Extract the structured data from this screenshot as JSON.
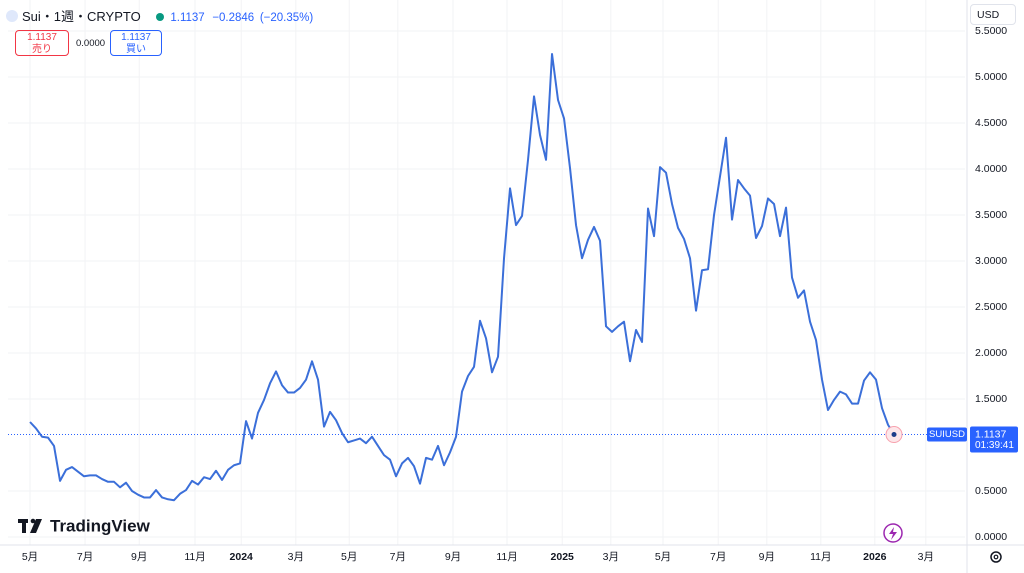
{
  "header": {
    "symbol": "Sui・1週・CRYPTO",
    "last": "1.1137",
    "change": "−0.2846",
    "change_pct": "(−20.35%)",
    "sell_price": "1.1137",
    "sell_label": "売り",
    "spread": "0.0000",
    "buy_price": "1.1137",
    "buy_label": "買い",
    "currency": "USD",
    "brand": "TradingView"
  },
  "chart_data": {
    "type": "line",
    "color": "#3b6fd9",
    "grid": true,
    "x": [
      0,
      1,
      2,
      3,
      4,
      5,
      6,
      7,
      8,
      9,
      10,
      11,
      12,
      13,
      14,
      15,
      16,
      17,
      18,
      19,
      20,
      21,
      22,
      23,
      24,
      25,
      26,
      27,
      28,
      29,
      30,
      31,
      32,
      33,
      34,
      35,
      36,
      37,
      38,
      39,
      40,
      41,
      42,
      43,
      44,
      45,
      46,
      47,
      48,
      49,
      50,
      51,
      52,
      53,
      54,
      55,
      56,
      57,
      58,
      59,
      60,
      61,
      62,
      63,
      64,
      65,
      66,
      67,
      68,
      69,
      70,
      71,
      72,
      73,
      74,
      75,
      76,
      77,
      78,
      79,
      80,
      81,
      82,
      83,
      84,
      85,
      86,
      87,
      88,
      89,
      90,
      91,
      92,
      93,
      94,
      95,
      96,
      97,
      98,
      99,
      100,
      101,
      102,
      103,
      104,
      105,
      106,
      107,
      108,
      109,
      110,
      111,
      112,
      113,
      114,
      115,
      116,
      117,
      118,
      119,
      120,
      121,
      122,
      123,
      124,
      125,
      126,
      127,
      128,
      129,
      130,
      131,
      132,
      133,
      134,
      135,
      136,
      137,
      138,
      139,
      140,
      141,
      142,
      143,
      144
    ],
    "values": [
      1.25,
      1.18,
      1.09,
      1.08,
      0.99,
      0.61,
      0.73,
      0.76,
      0.71,
      0.66,
      0.67,
      0.67,
      0.63,
      0.6,
      0.6,
      0.54,
      0.59,
      0.5,
      0.46,
      0.43,
      0.43,
      0.51,
      0.43,
      0.41,
      0.4,
      0.47,
      0.51,
      0.61,
      0.57,
      0.65,
      0.63,
      0.72,
      0.62,
      0.73,
      0.78,
      0.8,
      1.26,
      1.07,
      1.35,
      1.49,
      1.67,
      1.8,
      1.65,
      1.57,
      1.57,
      1.62,
      1.71,
      1.91,
      1.71,
      1.2,
      1.36,
      1.27,
      1.13,
      1.03,
      1.05,
      1.07,
      1.02,
      1.09,
      0.99,
      0.89,
      0.84,
      0.66,
      0.8,
      0.86,
      0.77,
      0.58,
      0.86,
      0.84,
      0.99,
      0.78,
      0.92,
      1.09,
      1.58,
      1.75,
      1.85,
      2.35,
      2.16,
      1.79,
      1.96,
      3.03,
      3.79,
      3.39,
      3.49,
      4.1,
      4.79,
      4.37,
      4.1,
      5.25,
      4.75,
      4.55,
      4.01,
      3.39,
      3.03,
      3.23,
      3.37,
      3.22,
      2.29,
      2.23,
      2.29,
      2.34,
      1.91,
      2.25,
      2.12,
      3.57,
      3.27,
      4.02,
      3.96,
      3.62,
      3.36,
      3.24,
      3.03,
      2.46,
      2.9,
      2.91,
      3.5,
      3.92,
      4.34,
      3.45,
      3.88,
      3.79,
      3.71,
      3.25,
      3.38,
      3.68,
      3.62,
      3.27,
      3.58,
      2.82,
      2.6,
      2.68,
      2.34,
      2.14,
      1.71,
      1.38,
      1.49,
      1.58,
      1.55,
      1.45,
      1.45,
      1.7,
      1.79,
      1.71,
      1.4,
      1.22,
      1.1137
    ],
    "xlim": [
      -3.67,
      155.83
    ],
    "xticks": [
      {
        "value": 0,
        "label": "5月"
      },
      {
        "value": 9.17,
        "label": "7月"
      },
      {
        "value": 18.2,
        "label": "9月"
      },
      {
        "value": 27.5,
        "label": "11月"
      },
      {
        "value": 35.2,
        "label": "2024"
      },
      {
        "value": 44.3,
        "label": "3月"
      },
      {
        "value": 53.2,
        "label": "5月"
      },
      {
        "value": 61.3,
        "label": "7月"
      },
      {
        "value": 70.5,
        "label": "9月"
      },
      {
        "value": 79.5,
        "label": "11月"
      },
      {
        "value": 88.7,
        "label": "2025"
      },
      {
        "value": 96.8,
        "label": "3月"
      },
      {
        "value": 105.5,
        "label": "5月"
      },
      {
        "value": 114.7,
        "label": "7月"
      },
      {
        "value": 122.8,
        "label": "9月"
      },
      {
        "value": 131.8,
        "label": "11月"
      },
      {
        "value": 140.8,
        "label": "2026"
      },
      {
        "value": 149.3,
        "label": "3月"
      }
    ],
    "ylim": [
      -0.087,
      5.837
    ],
    "yticks": [
      {
        "value": 0,
        "label": "0.0000"
      },
      {
        "value": 0.5,
        "label": "0.5000"
      },
      {
        "value": 1.5,
        "label": "1.5000"
      },
      {
        "value": 2,
        "label": "2.0000"
      },
      {
        "value": 2.5,
        "label": "2.5000"
      },
      {
        "value": 3,
        "label": "3.0000"
      },
      {
        "value": 3.5,
        "label": "3.5000"
      },
      {
        "value": 4,
        "label": "4.0000"
      },
      {
        "value": 4.5,
        "label": "4.5000"
      },
      {
        "value": 5,
        "label": "5.0000"
      },
      {
        "value": 5.5,
        "label": "5.5000"
      }
    ],
    "last_price": {
      "symbol": "SUIUSD",
      "value": 1.1137,
      "countdown": "01:39:41"
    }
  }
}
